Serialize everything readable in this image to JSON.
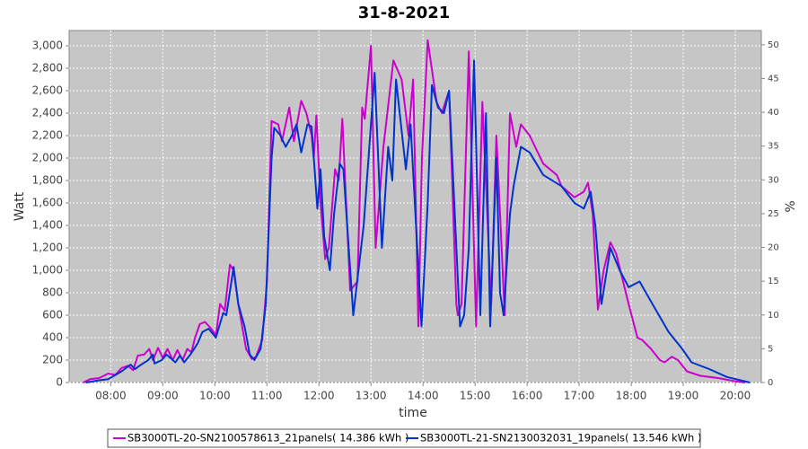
{
  "chart_data": {
    "type": "line",
    "title": "31-8-2021",
    "x_label": "time",
    "y_label": "Watt",
    "y2_label": "%",
    "xlim": [
      7.2,
      20.5
    ],
    "xticks": [
      {
        "value": 8,
        "label": "08:00"
      },
      {
        "value": 9,
        "label": "09:00"
      },
      {
        "value": 10,
        "label": "10:00"
      },
      {
        "value": 11,
        "label": "11:00"
      },
      {
        "value": 12,
        "label": "12:00"
      },
      {
        "value": 13,
        "label": "13:00"
      },
      {
        "value": 14,
        "label": "14:00"
      },
      {
        "value": 15,
        "label": "15:00"
      },
      {
        "value": 16,
        "label": "16:00"
      },
      {
        "value": 17,
        "label": "17:00"
      },
      {
        "value": 18,
        "label": "18:00"
      },
      {
        "value": 19,
        "label": "19:00"
      },
      {
        "value": 20,
        "label": "20:00"
      }
    ],
    "ylim": [
      0,
      3136
    ],
    "yticks": [
      0,
      200,
      400,
      600,
      800,
      {
        "value": 1000,
        "label": "1,000"
      },
      {
        "value": 1200,
        "label": "1,200"
      },
      {
        "value": 1400,
        "label": "1,400"
      },
      {
        "value": 1600,
        "label": "1,600"
      },
      {
        "value": 1800,
        "label": "1,800"
      },
      {
        "value": 2000,
        "label": "2,000"
      },
      {
        "value": 2200,
        "label": "2,200"
      },
      {
        "value": 2400,
        "label": "2,400"
      },
      {
        "value": 2600,
        "label": "2,600"
      },
      {
        "value": 2800,
        "label": "2,800"
      },
      {
        "value": 3000,
        "label": "3,000"
      }
    ],
    "y2lim": [
      0,
      52.1
    ],
    "y2ticks": [
      0,
      5,
      10,
      15,
      20,
      25,
      30,
      35,
      40,
      45,
      50
    ],
    "grid": true,
    "plot_background": "#c6c6c6",
    "legend_position": "bottom",
    "series": [
      {
        "name": "SB3000TL-20-SN2100578613_21panels( 14.386 kWh )",
        "color": "#cc00cc",
        "x": [
          7.47,
          7.6,
          7.78,
          7.95,
          8.09,
          8.21,
          8.33,
          8.43,
          8.52,
          8.64,
          8.74,
          8.81,
          8.91,
          9.0,
          9.09,
          9.19,
          9.28,
          9.38,
          9.47,
          9.55,
          9.62,
          9.71,
          9.81,
          9.93,
          10.02,
          10.1,
          10.19,
          10.29,
          10.36,
          10.45,
          10.6,
          10.71,
          10.79,
          10.91,
          11.0,
          11.09,
          11.22,
          11.29,
          11.43,
          11.52,
          11.66,
          11.76,
          11.86,
          11.9,
          11.95,
          12.03,
          12.12,
          12.19,
          12.31,
          12.38,
          12.45,
          12.6,
          12.74,
          12.83,
          12.88,
          13.0,
          13.09,
          13.24,
          13.43,
          13.59,
          13.72,
          13.81,
          13.91,
          13.98,
          14.09,
          14.26,
          14.36,
          14.5,
          14.64,
          14.67,
          14.74,
          14.88,
          15.02,
          15.14,
          15.31,
          15.41,
          15.57,
          15.67,
          15.79,
          15.88,
          16.05,
          16.31,
          16.57,
          16.66,
          16.91,
          17.09,
          17.17,
          17.26,
          17.36,
          17.47,
          17.6,
          17.71,
          17.95,
          18.12,
          18.21,
          18.38,
          18.55,
          18.64,
          18.78,
          18.9,
          19.07,
          19.33,
          19.67,
          20.02,
          20.19
        ],
        "values": [
          0,
          30,
          40,
          80,
          70,
          130,
          150,
          110,
          240,
          250,
          300,
          200,
          310,
          220,
          300,
          200,
          290,
          200,
          300,
          270,
          400,
          520,
          540,
          480,
          420,
          700,
          640,
          1050,
          1000,
          700,
          300,
          210,
          230,
          380,
          900,
          2330,
          2300,
          2150,
          2450,
          2150,
          2510,
          2400,
          2200,
          2000,
          2380,
          1600,
          1100,
          1200,
          1900,
          1800,
          2350,
          820,
          900,
          2450,
          2350,
          3000,
          1200,
          2100,
          2870,
          2700,
          2200,
          2700,
          500,
          2000,
          3050,
          2500,
          2400,
          2600,
          700,
          600,
          700,
          2950,
          500,
          2500,
          700,
          2200,
          600,
          2400,
          2100,
          2300,
          2200,
          1950,
          1850,
          1750,
          1650,
          1700,
          1780,
          1500,
          650,
          1000,
          1250,
          1150,
          700,
          400,
          380,
          300,
          200,
          180,
          230,
          200,
          100,
          60,
          40,
          10,
          0
        ]
      },
      {
        "name": "SB3000TL-21-SN2130032031_19panels( 13.546 kWh )",
        "color": "#0033cc",
        "x": [
          7.52,
          7.78,
          7.95,
          8.21,
          8.38,
          8.47,
          8.55,
          8.72,
          8.81,
          8.84,
          8.98,
          9.07,
          9.24,
          9.33,
          9.41,
          9.53,
          9.67,
          9.76,
          9.88,
          10.02,
          10.16,
          10.22,
          10.36,
          10.45,
          10.57,
          10.67,
          10.76,
          10.88,
          10.98,
          11.09,
          11.14,
          11.26,
          11.36,
          11.48,
          11.57,
          11.66,
          11.78,
          11.86,
          11.97,
          12.03,
          12.1,
          12.21,
          12.29,
          12.4,
          12.47,
          12.66,
          12.86,
          13.07,
          13.21,
          13.33,
          13.41,
          13.48,
          13.67,
          13.76,
          13.97,
          14.09,
          14.17,
          14.29,
          14.4,
          14.5,
          14.71,
          14.79,
          14.88,
          14.98,
          15.1,
          15.21,
          15.29,
          15.41,
          15.48,
          15.55,
          15.67,
          15.74,
          15.88,
          16.05,
          16.31,
          16.66,
          16.91,
          17.09,
          17.22,
          17.31,
          17.43,
          17.6,
          17.78,
          17.95,
          18.16,
          18.47,
          18.72,
          18.98,
          19.16,
          19.5,
          19.84,
          20.28
        ],
        "values": [
          0,
          20,
          30,
          100,
          160,
          120,
          150,
          200,
          250,
          170,
          200,
          250,
          180,
          240,
          180,
          250,
          350,
          450,
          480,
          400,
          620,
          600,
          1030,
          700,
          500,
          250,
          200,
          300,
          700,
          2000,
          2270,
          2200,
          2100,
          2200,
          2300,
          2050,
          2300,
          2280,
          1550,
          1900,
          1300,
          1000,
          1500,
          1950,
          1900,
          600,
          1400,
          2760,
          1200,
          2100,
          1800,
          2700,
          1900,
          2300,
          500,
          1600,
          2650,
          2450,
          2400,
          2600,
          500,
          600,
          1200,
          2870,
          600,
          2400,
          500,
          2000,
          800,
          600,
          1500,
          1750,
          2100,
          2050,
          1850,
          1750,
          1600,
          1550,
          1700,
          1400,
          700,
          1200,
          1000,
          850,
          900,
          650,
          450,
          300,
          180,
          120,
          50,
          0
        ]
      }
    ]
  }
}
